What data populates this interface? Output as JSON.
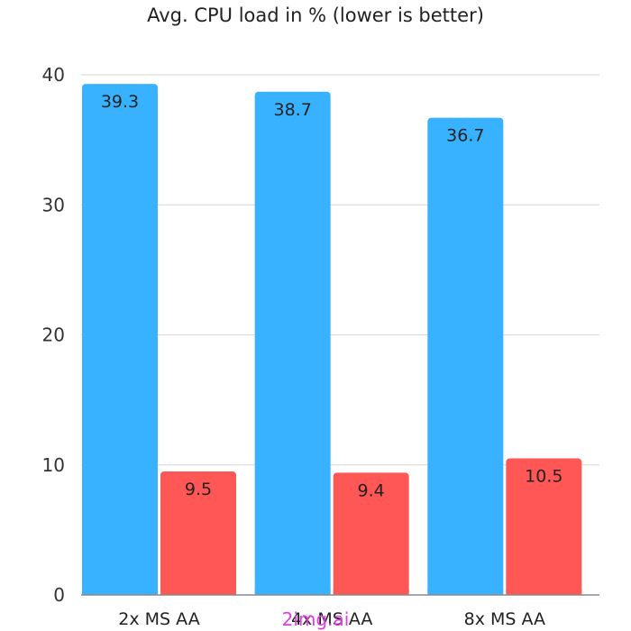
{
  "chart_data": {
    "type": "bar",
    "title": "Avg. CPU load in % (lower is better)",
    "categories": [
      "2x MS AA",
      "4x MS AA",
      "8x MS AA"
    ],
    "series": [
      {
        "values": [
          39.3,
          38.7,
          36.7
        ],
        "color": "#38b2ff"
      },
      {
        "values": [
          9.5,
          9.4,
          10.5
        ],
        "color": "#ff5656"
      }
    ],
    "value_labels": [
      [
        "39.3",
        "38.7",
        "36.7"
      ],
      [
        "9.5",
        "9.4",
        "10.5"
      ]
    ],
    "ylim": [
      0,
      40
    ],
    "yticks": [
      0,
      10,
      20,
      30,
      40
    ],
    "grid": true,
    "xlabel": "",
    "ylabel": ""
  },
  "watermark": "2img.ai"
}
